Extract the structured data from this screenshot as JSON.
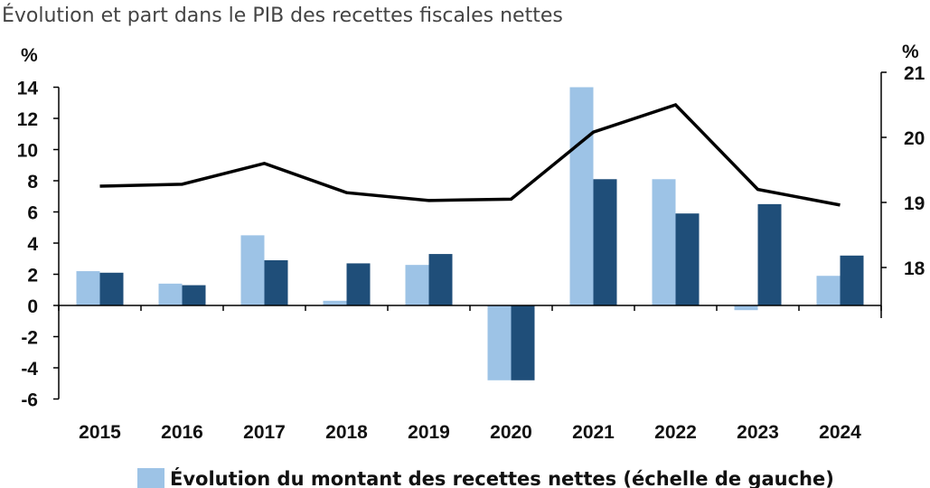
{
  "title": "Évolution et part dans le PIB des recettes fiscales nettes",
  "chart_data": {
    "type": "bar",
    "categories": [
      "2015",
      "2016",
      "2017",
      "2018",
      "2019",
      "2020",
      "2021",
      "2022",
      "2023",
      "2024"
    ],
    "series": [
      {
        "name": "Évolution du montant des recettes nettes (échelle de gauche)",
        "type": "bar",
        "axis": "left",
        "color": "#9dc3e6",
        "values": [
          2.2,
          1.4,
          4.5,
          0.3,
          2.6,
          -4.8,
          14.0,
          8.1,
          -0.3,
          1.9
        ]
      },
      {
        "name": "",
        "type": "bar",
        "axis": "left",
        "color": "#1f4e79",
        "values": [
          2.1,
          1.3,
          2.9,
          2.7,
          3.3,
          -4.8,
          8.1,
          5.9,
          6.5,
          3.2
        ]
      },
      {
        "name": "",
        "type": "line",
        "axis": "right",
        "color": "#000000",
        "values": [
          19.25,
          19.28,
          19.6,
          19.15,
          19.03,
          19.05,
          20.08,
          20.5,
          19.2,
          18.96
        ]
      }
    ],
    "left_axis": {
      "unit": "%",
      "ylim": [
        -6,
        14
      ],
      "ticks": [
        "14",
        "12",
        "10",
        "8",
        "6",
        "4",
        "2",
        "0",
        "-2",
        "-4",
        "-6"
      ]
    },
    "right_axis": {
      "unit": "%",
      "ylim": [
        17.4,
        21
      ],
      "ticks": [
        "21",
        "20",
        "19",
        "18"
      ]
    },
    "legend": {
      "position": "bottom",
      "entries": [
        {
          "label": "Évolution du montant des recettes nettes (échelle de gauche)",
          "color": "#9dc3e6"
        }
      ]
    }
  }
}
